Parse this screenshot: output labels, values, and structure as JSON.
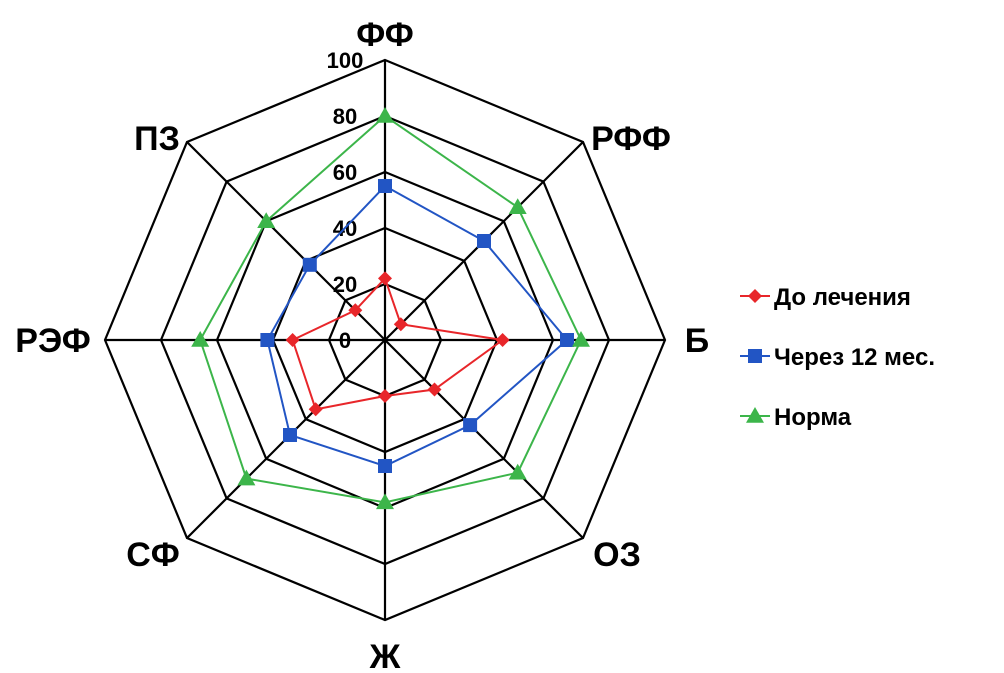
{
  "chart_data": {
    "type": "radar",
    "categories": [
      "ФФ",
      "РФФ",
      "Б",
      "ОЗ",
      "Ж",
      "СФ",
      "РЭФ",
      "ПЗ"
    ],
    "rlim": [
      0,
      100
    ],
    "ticks": [
      "0",
      "20",
      "40",
      "60",
      "80",
      "100"
    ],
    "grid": true,
    "legend_position": "right",
    "series": [
      {
        "name": "До лечения",
        "color": "#e8262a",
        "marker": "diamond",
        "values": [
          22,
          8,
          42,
          25,
          20,
          35,
          33,
          15
        ]
      },
      {
        "name": "Через 12 мес.",
        "color": "#2255c4",
        "marker": "square",
        "values": [
          55,
          50,
          65,
          43,
          45,
          48,
          42,
          38
        ]
      },
      {
        "name": "Норма",
        "color": "#3cb54a",
        "marker": "triangle",
        "values": [
          80,
          67,
          70,
          67,
          58,
          70,
          66,
          60
        ]
      }
    ]
  }
}
